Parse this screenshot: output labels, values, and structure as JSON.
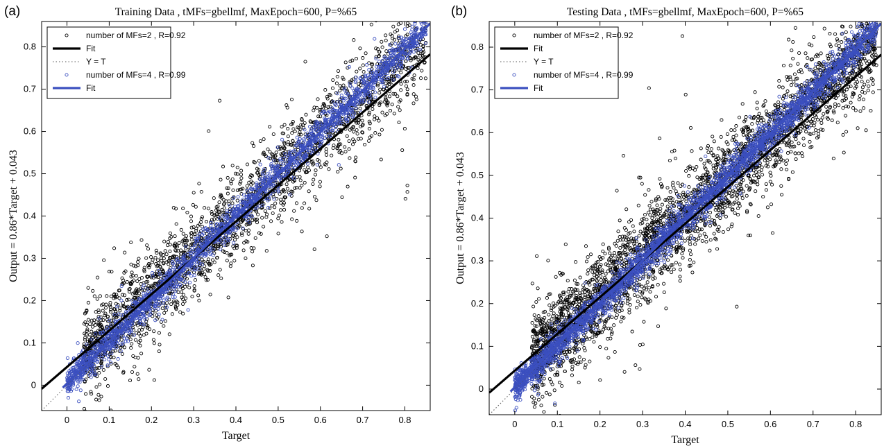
{
  "colors": {
    "black_series": "#000000",
    "blue_series": "#3b4fbf",
    "identity": "#555555"
  },
  "chart_data": [
    {
      "panel_label": "(a)",
      "type": "scatter",
      "title": "Training Data , tMFs=gbellmf, MaxEpoch=600, P=%65",
      "xlabel": "Target",
      "ylabel": "Output  = 0.86*Target + 0.043",
      "xlim": [
        -0.06,
        0.86
      ],
      "ylim": [
        -0.06,
        0.86
      ],
      "x_ticks": [
        "0",
        "0.1",
        "0.2",
        "0.3",
        "0.4",
        "0.5",
        "0.6",
        "0.7",
        "0.8"
      ],
      "y_ticks": [
        "0",
        "0.1",
        "0.2",
        "0.3",
        "0.4",
        "0.5",
        "0.6",
        "0.7",
        "0.8"
      ],
      "grid": false,
      "legend_position": "top-left",
      "legend": [
        "number of MFs=2 , R=0.92",
        "Fit",
        "Y = T",
        "number of MFs=4 , R=0.99",
        "Fit"
      ],
      "series": [
        {
          "name": "number of MFs=2 , R=0.92",
          "marker": "open-circle",
          "color": "#000000",
          "r": 0.92,
          "x_range": [
            0.04,
            0.85
          ],
          "points": 2200
        },
        {
          "name": "Fit",
          "type": "line",
          "color": "#000000",
          "slope": 0.86,
          "intercept": 0.043
        },
        {
          "name": "Y = T",
          "type": "line",
          "style": "dotted",
          "color": "#555555",
          "slope": 1.0,
          "intercept": 0.0
        },
        {
          "name": "number of MFs=4 , R=0.99",
          "marker": "open-circle",
          "color": "#3b4fbf",
          "r": 0.99,
          "x_range": [
            0.0,
            0.85
          ],
          "points": 2200
        },
        {
          "name": "Fit",
          "type": "line",
          "color": "#3b4fbf",
          "slope": 0.99,
          "intercept": 0.004,
          "x_start": -0.01
        }
      ]
    },
    {
      "panel_label": "(b)",
      "type": "scatter",
      "title": "Testing Data , tMFs=gbellmf, MaxEpoch=600, P=%65",
      "xlabel": "Target",
      "ylabel": "Output  = 0.86*Target + 0.043",
      "xlim": [
        -0.06,
        0.86
      ],
      "ylim": [
        -0.06,
        0.86
      ],
      "x_ticks": [
        "0",
        "0.1",
        "0.2",
        "0.3",
        "0.4",
        "0.5",
        "0.6",
        "0.7",
        "0.8"
      ],
      "y_ticks": [
        "0",
        "0.1",
        "0.2",
        "0.3",
        "0.4",
        "0.5",
        "0.6",
        "0.7",
        "0.8"
      ],
      "grid": false,
      "legend_position": "top-left",
      "legend": [
        "number of MFs=2 , R=0.92",
        "Fit",
        "Y = T",
        "number of MFs=4 , R=0.99",
        "Fit"
      ],
      "series": [
        {
          "name": "number of MFs=2 , R=0.92",
          "marker": "open-circle",
          "color": "#000000",
          "r": 0.92,
          "x_range": [
            0.04,
            0.85
          ],
          "points": 3200
        },
        {
          "name": "Fit",
          "type": "line",
          "color": "#000000",
          "slope": 0.86,
          "intercept": 0.043
        },
        {
          "name": "Y = T",
          "type": "line",
          "style": "dotted",
          "color": "#555555",
          "slope": 1.0,
          "intercept": 0.0
        },
        {
          "name": "number of MFs=4 , R=0.99",
          "marker": "open-circle",
          "color": "#3b4fbf",
          "r": 0.99,
          "x_range": [
            0.0,
            0.85
          ],
          "points": 3200
        },
        {
          "name": "Fit",
          "type": "line",
          "color": "#3b4fbf",
          "slope": 0.99,
          "intercept": 0.004,
          "x_start": -0.01
        }
      ]
    }
  ]
}
